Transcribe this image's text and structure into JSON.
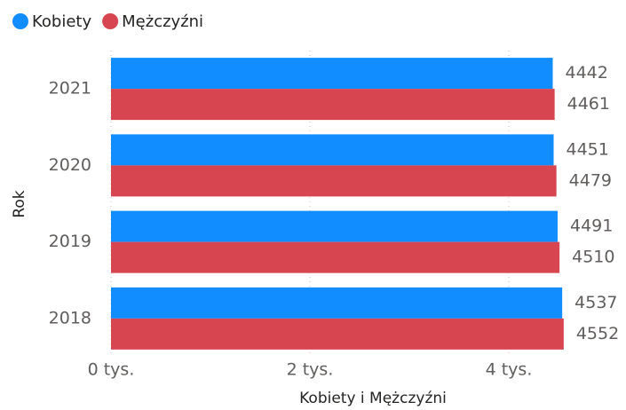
{
  "chart_data": {
    "type": "hbar",
    "x_label": "Kobiety i Mężczyźni",
    "y_label": "Rok",
    "categories": [
      "2021",
      "2020",
      "2019",
      "2018"
    ],
    "series": [
      {
        "name": "Kobiety",
        "color": "#118DFF",
        "values": [
          4442,
          4451,
          4491,
          4537
        ]
      },
      {
        "name": "Mężczyźni",
        "color": "#D64550",
        "values": [
          4461,
          4479,
          4510,
          4552
        ]
      }
    ],
    "xlim": [
      0,
      5000
    ],
    "xticks": [
      {
        "value": 0,
        "label": "0 tys."
      },
      {
        "value": 2000,
        "label": "2 tys."
      },
      {
        "value": 4000,
        "label": "4 tys."
      }
    ],
    "grid": true,
    "legend": "top-left"
  }
}
